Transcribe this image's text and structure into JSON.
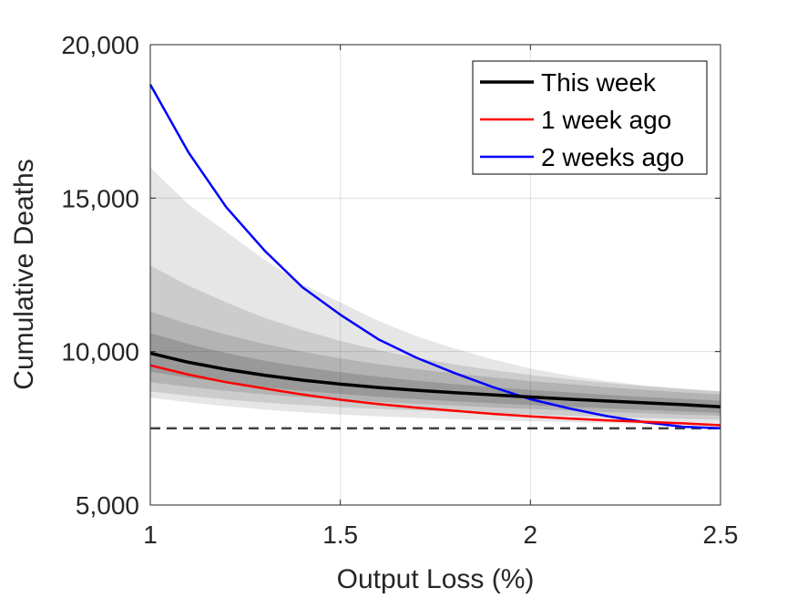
{
  "chart_data": {
    "type": "line",
    "title": "",
    "xlabel": "Output Loss (%)",
    "ylabel": "Cumulative Deaths",
    "xlim": [
      1,
      2.5
    ],
    "ylim": [
      5000,
      20000
    ],
    "xticks": [
      1,
      1.5,
      2,
      2.5
    ],
    "xtick_labels": [
      "1",
      "1.5",
      "2",
      "2.5"
    ],
    "yticks": [
      5000,
      10000,
      15000,
      20000
    ],
    "ytick_labels": [
      "5,000",
      "10,000",
      "15,000",
      "20,000"
    ],
    "grid": true,
    "legend_position": "top-right",
    "x": [
      1.0,
      1.1,
      1.2,
      1.3,
      1.4,
      1.5,
      1.6,
      1.7,
      1.8,
      1.9,
      2.0,
      2.1,
      2.2,
      2.3,
      2.4,
      2.5
    ],
    "series": [
      {
        "name": "This week",
        "color": "#000000",
        "values": [
          9950,
          9650,
          9420,
          9230,
          9070,
          8940,
          8830,
          8740,
          8660,
          8590,
          8520,
          8450,
          8390,
          8330,
          8270,
          8200
        ]
      },
      {
        "name": "1 week ago",
        "color": "#ff0000",
        "values": [
          9550,
          9250,
          9000,
          8800,
          8600,
          8430,
          8290,
          8170,
          8070,
          7970,
          7890,
          7820,
          7760,
          7710,
          7660,
          7600
        ]
      },
      {
        "name": "2 weeks ago",
        "color": "#0000ff",
        "values": [
          18700,
          16500,
          14700,
          13300,
          12100,
          11200,
          10400,
          9800,
          9300,
          8850,
          8450,
          8150,
          7900,
          7700,
          7550,
          7500
        ]
      }
    ],
    "reference_line": {
      "y": 7500,
      "style": "dashed",
      "color": "#404040"
    },
    "bands": [
      {
        "color": "#e6e6e6",
        "upper": [
          16000,
          14800,
          13900,
          13000,
          12200,
          11600,
          11000,
          10500,
          10100,
          9750,
          9450,
          9220,
          9040,
          8900,
          8800,
          8700
        ],
        "lower": [
          8500,
          8350,
          8220,
          8110,
          8020,
          7950,
          7890,
          7840,
          7800,
          7760,
          7730,
          7700,
          7670,
          7640,
          7610,
          7580
        ]
      },
      {
        "color": "#cccccc",
        "upper": [
          12800,
          12150,
          11600,
          11100,
          10700,
          10350,
          10050,
          9800,
          9580,
          9400,
          9240,
          9100,
          8980,
          8870,
          8780,
          8700
        ],
        "lower": [
          8700,
          8560,
          8440,
          8340,
          8260,
          8190,
          8130,
          8080,
          8030,
          7990,
          7950,
          7910,
          7870,
          7840,
          7810,
          7780
        ]
      },
      {
        "color": "#b3b3b3",
        "upper": [
          11300,
          10900,
          10550,
          10250,
          10000,
          9780,
          9590,
          9430,
          9290,
          9160,
          9040,
          8940,
          8840,
          8750,
          8670,
          8600
        ],
        "lower": [
          9000,
          8850,
          8720,
          8610,
          8510,
          8430,
          8360,
          8300,
          8240,
          8180,
          8130,
          8080,
          8030,
          7990,
          7950,
          7910
        ]
      },
      {
        "color": "#999999",
        "upper": [
          10600,
          10250,
          9950,
          9700,
          9500,
          9330,
          9180,
          9050,
          8940,
          8840,
          8750,
          8670,
          8590,
          8520,
          8460,
          8400
        ],
        "lower": [
          9350,
          9150,
          8980,
          8840,
          8720,
          8620,
          8530,
          8450,
          8380,
          8320,
          8260,
          8200,
          8150,
          8100,
          8050,
          8000
        ]
      }
    ]
  }
}
